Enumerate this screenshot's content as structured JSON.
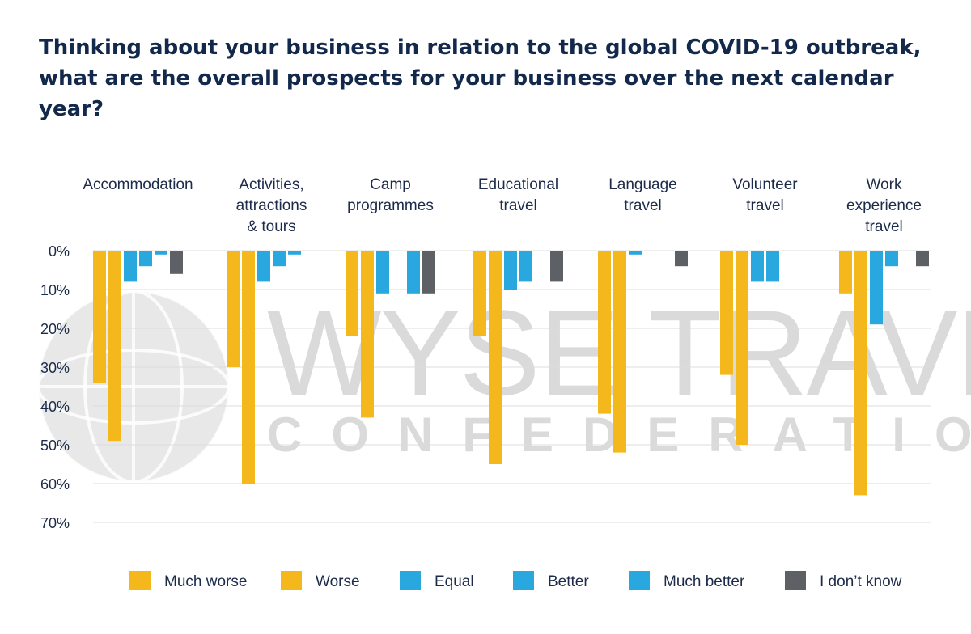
{
  "chart_data": {
    "type": "bar",
    "title": "Thinking about your business in relation to the global COVID-19 outbreak, what are the overall prospects for your business over the next calendar year?",
    "categories": [
      [
        "Accommodation"
      ],
      [
        "Activities,",
        "attractions",
        "& tours"
      ],
      [
        "Camp",
        "programmes"
      ],
      [
        "Educational",
        "travel"
      ],
      [
        "Language",
        "travel"
      ],
      [
        "Volunteer",
        "travel"
      ],
      [
        "Work",
        "experience",
        "travel"
      ]
    ],
    "y_ticks": [
      "0%",
      "10%",
      "20%",
      "30%",
      "40%",
      "50%",
      "60%",
      "70%"
    ],
    "ylim": [
      0,
      70
    ],
    "y_direction": "downward",
    "grid": true,
    "legend_position": "bottom",
    "series": [
      {
        "name": "Much worse",
        "color": "#f5b81c",
        "values": [
          34,
          30,
          22,
          22,
          42,
          32,
          11
        ]
      },
      {
        "name": "Worse",
        "color": "#f5b81c",
        "values": [
          49,
          60,
          43,
          55,
          52,
          50,
          63
        ]
      },
      {
        "name": "Equal",
        "color": "#29a8e0",
        "values": [
          8,
          8,
          11,
          10,
          1,
          8,
          19
        ]
      },
      {
        "name": "Better",
        "color": "#29a8e0",
        "values": [
          4,
          4,
          0,
          8,
          0,
          8,
          4
        ]
      },
      {
        "name": "Much better",
        "color": "#29a8e0",
        "values": [
          1,
          1,
          11,
          0,
          0,
          0,
          0
        ]
      },
      {
        "name": "I don’t know",
        "color": "#5d6165",
        "values": [
          6,
          0,
          11,
          8,
          4,
          0,
          4
        ]
      }
    ],
    "watermark": {
      "line1": "WYSE TRAVEL",
      "line2": "CONFEDERATION"
    }
  }
}
